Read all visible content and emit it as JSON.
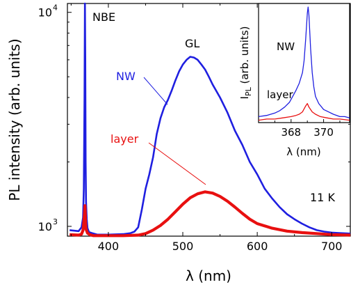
{
  "chart_data": [
    {
      "type": "line",
      "xlabel": "λ (nm)",
      "ylabel": "PL intensity (arb. units)",
      "xlim": [
        345,
        725
      ],
      "ylim": [
        900,
        11000
      ],
      "yscale": "log",
      "grid": false,
      "x_ticks": [
        400,
        500,
        600,
        700
      ],
      "y_ticks": [
        {
          "value": 1000,
          "base": "10",
          "exp": "3"
        },
        {
          "value": 10000,
          "base": "10",
          "exp": "4"
        }
      ],
      "annotations": {
        "nbe": "NBE",
        "gl": "GL",
        "nw": "NW",
        "layer": "layer",
        "temperature": "11 K"
      },
      "series": [
        {
          "name": "NW",
          "color": "#1f1fe0",
          "x": [
            348,
            360,
            364,
            366,
            367,
            368,
            368.5,
            369,
            369.5,
            370,
            371,
            372,
            374,
            378,
            385,
            400,
            420,
            430,
            435,
            440,
            445,
            450,
            455,
            460,
            465,
            470,
            475,
            480,
            485,
            490,
            495,
            500,
            505,
            510,
            515,
            520,
            525,
            530,
            535,
            540,
            550,
            560,
            570,
            580,
            590,
            600,
            610,
            620,
            630,
            640,
            650,
            660,
            670,
            680,
            690,
            700,
            710,
            725
          ],
          "y": [
            960,
            950,
            990,
            1100,
            1500,
            4000,
            11000,
            6000,
            2000,
            1300,
            1080,
            980,
            940,
            930,
            915,
            915,
            920,
            930,
            945,
            990,
            1200,
            1500,
            1750,
            2100,
            2700,
            3200,
            3600,
            3900,
            4300,
            4800,
            5300,
            5700,
            6000,
            6200,
            6150,
            6000,
            5700,
            5400,
            5000,
            4600,
            4000,
            3400,
            2800,
            2400,
            2000,
            1750,
            1500,
            1350,
            1230,
            1140,
            1080,
            1030,
            990,
            960,
            945,
            935,
            930,
            925
          ]
        },
        {
          "name": "layer",
          "color": "#e81010",
          "x": [
            348,
            360,
            364,
            366,
            367,
            368,
            368.5,
            369,
            369.5,
            370,
            372,
            375,
            380,
            400,
            420,
            440,
            450,
            460,
            470,
            480,
            490,
            500,
            510,
            520,
            530,
            540,
            550,
            560,
            570,
            580,
            590,
            600,
            620,
            640,
            660,
            680,
            700,
            725
          ],
          "y": [
            915,
            910,
            920,
            960,
            1050,
            1150,
            1250,
            1150,
            1030,
            970,
            930,
            915,
            905,
            905,
            905,
            910,
            925,
            960,
            1010,
            1080,
            1170,
            1270,
            1360,
            1420,
            1450,
            1430,
            1380,
            1310,
            1230,
            1150,
            1080,
            1030,
            980,
            950,
            935,
            925,
            915,
            910
          ]
        }
      ]
    },
    {
      "type": "line",
      "xlabel": "λ (nm)",
      "ylabel": "I",
      "ylabel_sub": "PL",
      "ylabel_rest": " (arb. units)",
      "xlim": [
        366.0,
        371.6
      ],
      "ylim": [
        0,
        1
      ],
      "grid": false,
      "x_ticks": [
        368,
        370
      ],
      "annotations": {
        "nw": "NW",
        "layer": "layer"
      },
      "series": [
        {
          "name": "NW",
          "color": "#1f1fe0",
          "x": [
            366.0,
            366.5,
            367.0,
            367.3,
            367.6,
            367.9,
            368.1,
            368.3,
            368.5,
            368.7,
            368.8,
            368.9,
            369.0,
            369.05,
            369.1,
            369.2,
            369.3,
            369.4,
            369.5,
            369.7,
            370.0,
            370.3,
            370.6,
            371.0,
            371.3,
            371.6
          ],
          "y": [
            0.05,
            0.06,
            0.08,
            0.1,
            0.13,
            0.17,
            0.22,
            0.27,
            0.33,
            0.42,
            0.52,
            0.7,
            0.92,
            0.97,
            0.9,
            0.62,
            0.42,
            0.3,
            0.22,
            0.16,
            0.11,
            0.09,
            0.07,
            0.05,
            0.05,
            0.04
          ]
        },
        {
          "name": "layer",
          "color": "#e81010",
          "x": [
            366.0,
            366.5,
            367.0,
            367.5,
            368.0,
            368.3,
            368.5,
            368.7,
            368.9,
            369.0,
            369.1,
            369.3,
            369.5,
            369.8,
            370.2,
            370.6,
            371.0,
            371.6
          ],
          "y": [
            0.02,
            0.03,
            0.03,
            0.04,
            0.05,
            0.06,
            0.07,
            0.09,
            0.14,
            0.16,
            0.13,
            0.09,
            0.07,
            0.05,
            0.04,
            0.03,
            0.03,
            0.02
          ]
        }
      ]
    }
  ]
}
